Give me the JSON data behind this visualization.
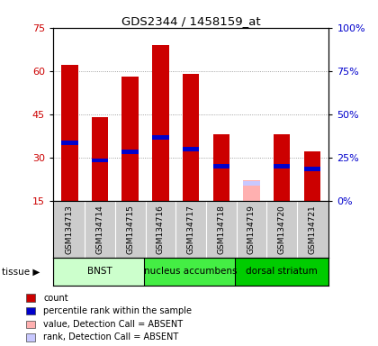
{
  "title": "GDS2344 / 1458159_at",
  "samples": [
    "GSM134713",
    "GSM134714",
    "GSM134715",
    "GSM134716",
    "GSM134717",
    "GSM134718",
    "GSM134719",
    "GSM134720",
    "GSM134721"
  ],
  "count_values": [
    62,
    44,
    58,
    69,
    59,
    38,
    null,
    38,
    32
  ],
  "rank_values": [
    35,
    29,
    32,
    37,
    33,
    27,
    null,
    27,
    26
  ],
  "absent_count": [
    null,
    null,
    null,
    null,
    null,
    null,
    22,
    null,
    null
  ],
  "absent_rank": [
    null,
    null,
    null,
    null,
    null,
    null,
    21,
    null,
    null
  ],
  "ylim": [
    15,
    75
  ],
  "yticks": [
    15,
    30,
    45,
    60,
    75
  ],
  "right_ylabels": [
    "0%",
    "25%",
    "50%",
    "75%",
    "100%"
  ],
  "bar_width": 0.55,
  "bar_color": "#cc0000",
  "rank_color": "#0000cc",
  "absent_bar_color": "#ffb0b0",
  "absent_rank_color": "#c8c8ff",
  "bg_plot": "#ffffff",
  "bg_xaxis": "#cccccc",
  "tissues": [
    {
      "label": "BNST",
      "start": 0,
      "end": 3,
      "color": "#ccffcc"
    },
    {
      "label": "nucleus accumbens",
      "start": 3,
      "end": 6,
      "color": "#44ee44"
    },
    {
      "label": "dorsal striatum",
      "start": 6,
      "end": 9,
      "color": "#00cc00"
    }
  ],
  "legend_items": [
    {
      "color": "#cc0000",
      "label": "count"
    },
    {
      "color": "#0000cc",
      "label": "percentile rank within the sample"
    },
    {
      "color": "#ffb0b0",
      "label": "value, Detection Call = ABSENT"
    },
    {
      "color": "#c8c8ff",
      "label": "rank, Detection Call = ABSENT"
    }
  ]
}
